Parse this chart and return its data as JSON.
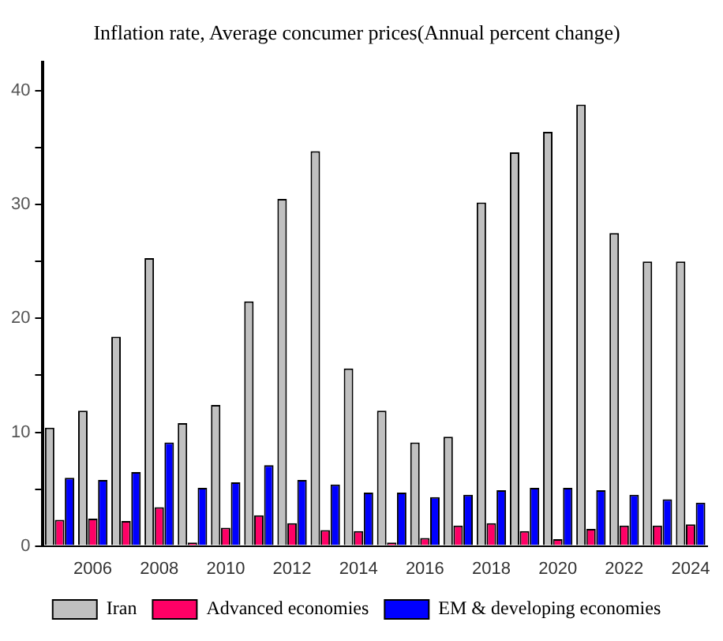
{
  "chart_data": {
    "type": "bar",
    "title": "Inflation rate, Average concumer prices(Annual percent change)",
    "categories": [
      null,
      "2006",
      null,
      "2008",
      null,
      "2010",
      null,
      "2012",
      null,
      "2014",
      null,
      "2016",
      null,
      "2018",
      null,
      "2020",
      null,
      "2022",
      null,
      "2024"
    ],
    "series": [
      {
        "name": "Iran",
        "color": "#c0c0c0",
        "values": [
          10.4,
          11.9,
          18.4,
          25.3,
          10.8,
          12.4,
          21.5,
          30.5,
          34.7,
          15.6,
          11.9,
          9.1,
          9.6,
          30.2,
          34.6,
          36.4,
          38.8,
          27.5,
          25.0,
          25.0
        ]
      },
      {
        "name": "Advanced economies",
        "color": "#ff0066",
        "values": [
          2.3,
          2.4,
          2.2,
          3.4,
          0.3,
          1.6,
          2.7,
          2.0,
          1.4,
          1.3,
          0.3,
          0.7,
          1.8,
          2.0,
          1.3,
          0.6,
          1.5,
          1.8,
          1.8,
          1.9
        ]
      },
      {
        "name": "EM & developing economies",
        "color": "#0000ff",
        "values": [
          6.0,
          5.8,
          6.5,
          9.1,
          5.1,
          5.6,
          7.1,
          5.8,
          5.4,
          4.7,
          4.7,
          4.3,
          4.5,
          4.9,
          5.1,
          5.1,
          4.9,
          4.5,
          4.1,
          3.8
        ]
      }
    ],
    "ylim": [
      0,
      42.5
    ],
    "yticks": [
      0,
      {
        "value": 5,
        "label": null
      },
      10,
      {
        "value": 15,
        "label": null
      },
      20,
      {
        "value": 25,
        "label": null
      },
      30,
      {
        "value": 35,
        "label": null
      },
      40
    ],
    "grid": false,
    "legend": "bottom"
  }
}
